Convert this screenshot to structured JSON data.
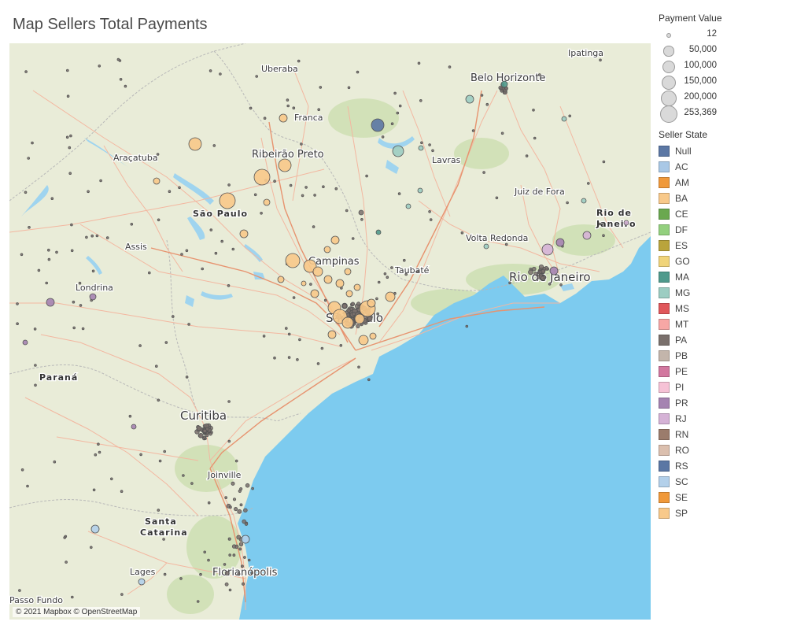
{
  "title": "Map Sellers Total Payments",
  "attribution": "© 2021 Mapbox © OpenStreetMap",
  "colors": {
    "ocean": "#7dcbef",
    "land": "#e9ecd8",
    "road": "#f3b7a0",
    "highway": "#e7936f",
    "border": "#b8b8b8",
    "water": "#9fd4ef",
    "forest": "#cfe0b5"
  },
  "cities": [
    {
      "name": "Uberaba",
      "style": "sm"
    },
    {
      "name": "Ipatinga",
      "style": "sm"
    },
    {
      "name": "Belo Horizonte",
      "style": "big"
    },
    {
      "name": "Franca",
      "style": "sm"
    },
    {
      "name": "Araçatuba",
      "style": "sm"
    },
    {
      "name": "Ribeirão Preto",
      "style": "big"
    },
    {
      "name": "Lavras",
      "style": "sm"
    },
    {
      "name": "Juiz de Fora",
      "style": "sm"
    },
    {
      "name": "São Paulo",
      "style": "state"
    },
    {
      "name": "Rio de",
      "style": "state"
    },
    {
      "name": "Janeiro",
      "style": "state"
    },
    {
      "name": "Assis",
      "style": "sm"
    },
    {
      "name": "Volta Redonda",
      "style": "sm"
    },
    {
      "name": "Campinas",
      "style": "big"
    },
    {
      "name": "Taubaté",
      "style": "sm"
    },
    {
      "name": "Rio de Janeiro",
      "style": "xl"
    },
    {
      "name": "Londrina",
      "style": "sm"
    },
    {
      "name": "São Paulo",
      "style": "xl"
    },
    {
      "name": "Paraná",
      "style": "state"
    },
    {
      "name": "Curitiba",
      "style": "xl"
    },
    {
      "name": "Joinville",
      "style": "sm"
    },
    {
      "name": "Santa",
      "style": "state"
    },
    {
      "name": "Catarina",
      "style": "state"
    },
    {
      "name": "Lages",
      "style": "sm"
    },
    {
      "name": "Florianópolis",
      "style": "big"
    },
    {
      "name": "Passo Fundo",
      "style": "sm"
    }
  ],
  "legend": {
    "size_title": "Payment Value",
    "sizes": [
      {
        "label": "12",
        "value": 12
      },
      {
        "label": "50,000",
        "value": 50000
      },
      {
        "label": "100,000",
        "value": 100000
      },
      {
        "label": "150,000",
        "value": 150000
      },
      {
        "label": "200,000",
        "value": 200000
      },
      {
        "label": "253,369",
        "value": 253369
      }
    ],
    "color_title": "Seller State",
    "states": [
      {
        "label": "Null",
        "color": "#5b77a4"
      },
      {
        "label": "AC",
        "color": "#a9c8e6"
      },
      {
        "label": "AM",
        "color": "#f0993a"
      },
      {
        "label": "BA",
        "color": "#f8c98a"
      },
      {
        "label": "CE",
        "color": "#6aa84f"
      },
      {
        "label": "DF",
        "color": "#93d07e"
      },
      {
        "label": "ES",
        "color": "#b9a43c"
      },
      {
        "label": "GO",
        "color": "#f0d47a"
      },
      {
        "label": "MA",
        "color": "#4f9a8c"
      },
      {
        "label": "MG",
        "color": "#9ccdc2"
      },
      {
        "label": "MS",
        "color": "#e0575b"
      },
      {
        "label": "MT",
        "color": "#f7a7a5"
      },
      {
        "label": "PA",
        "color": "#7a706c"
      },
      {
        "label": "PB",
        "color": "#c3b5ab"
      },
      {
        "label": "PE",
        "color": "#d2779f"
      },
      {
        "label": "PI",
        "color": "#f6c2d6"
      },
      {
        "label": "PR",
        "color": "#a583b1"
      },
      {
        "label": "RJ",
        "color": "#d5b2d6"
      },
      {
        "label": "RN",
        "color": "#9b7c6c"
      },
      {
        "label": "RO",
        "color": "#dbbfae"
      },
      {
        "label": "RS",
        "color": "#5b77a4"
      },
      {
        "label": "SC",
        "color": "#b3d0ea"
      },
      {
        "label": "SE",
        "color": "#f0993a"
      },
      {
        "label": "SP",
        "color": "#f8c98a"
      }
    ]
  }
}
